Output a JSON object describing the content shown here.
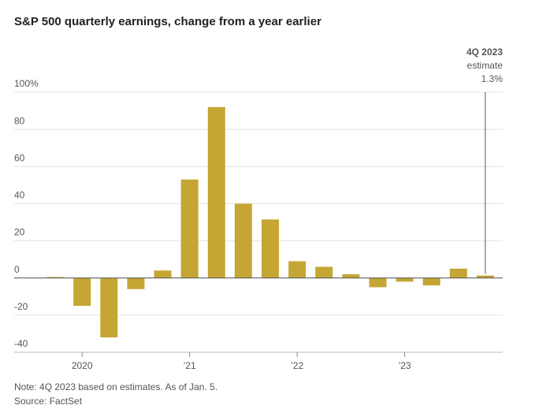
{
  "chart_data": {
    "type": "bar",
    "title": "S&P 500 quarterly earnings, change from a year earlier",
    "categories": [
      null,
      "2020",
      null,
      null,
      null,
      "’21",
      null,
      null,
      null,
      "’22",
      null,
      null,
      null,
      "’23",
      null,
      null,
      null
    ],
    "values": [
      0.5,
      -15,
      -32,
      -6,
      4,
      53,
      92,
      40,
      31.5,
      9,
      6,
      2,
      -5,
      -2,
      -4,
      5,
      1.3
    ],
    "color": "#c5a634",
    "ylim": [
      -40,
      100
    ],
    "yticks": [
      {
        "value": 100,
        "label": "100%"
      },
      80,
      60,
      40,
      20,
      0,
      -20,
      -40
    ],
    "grid": true,
    "annotation": {
      "label": "4Q 2023",
      "text": "estimate",
      "value_label": "1.3%"
    },
    "note": "Note: 4Q 2023 based on estimates. As of Jan. 5.",
    "source": "Source: FactSet"
  }
}
